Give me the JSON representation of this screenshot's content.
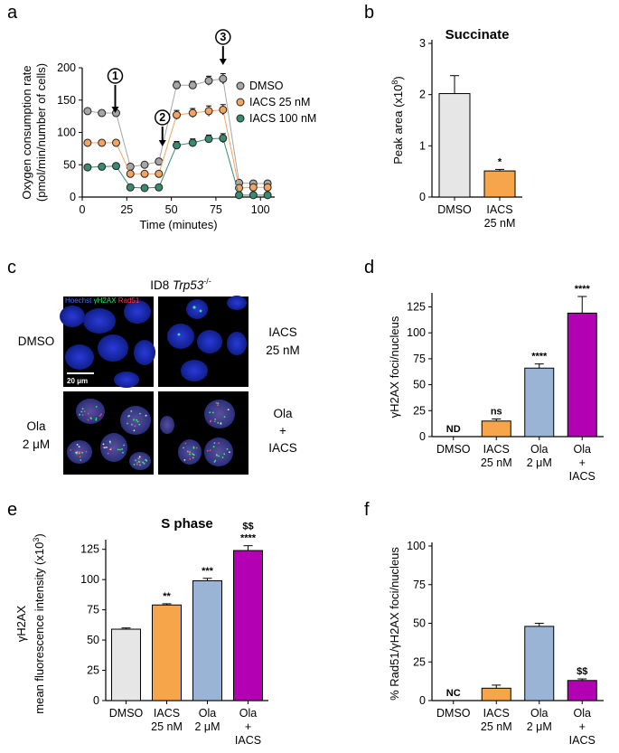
{
  "panels": [
    "a",
    "b",
    "c",
    "d",
    "e",
    "f"
  ],
  "chart_data": [
    {
      "panel": "a",
      "type": "line",
      "xlabel": "Time (minutes)",
      "ylabel_lines": [
        "Oxygen consumption rate",
        "(pmol/min/number of cells)"
      ],
      "xlim": [
        0,
        108
      ],
      "ylim": [
        0,
        200
      ],
      "xticks": [
        0,
        25,
        50,
        75,
        100
      ],
      "yticks": [
        0,
        50,
        100,
        150,
        200
      ],
      "legend_position": "right",
      "injections": [
        {
          "label": "1",
          "x": 18.5
        },
        {
          "label": "2",
          "x": 45
        },
        {
          "label": "3",
          "x": 79
        }
      ],
      "series": [
        {
          "name": "DMSO",
          "color": "#a6a6a6",
          "x": [
            3,
            11,
            19,
            27,
            35,
            43,
            53,
            62,
            71,
            79,
            88,
            96,
            104
          ],
          "y": [
            133,
            130,
            130,
            47,
            50,
            55,
            173,
            173,
            180,
            183,
            22,
            21,
            21
          ],
          "err": [
            4,
            4,
            3,
            4,
            4,
            4,
            6,
            6,
            7,
            8,
            3,
            3,
            3
          ]
        },
        {
          "name": "IACS 25 nM",
          "color": "#f4a460",
          "x": [
            3,
            11,
            19,
            27,
            35,
            43,
            53,
            62,
            71,
            79,
            88,
            96,
            104
          ],
          "y": [
            84,
            84,
            84,
            36,
            36,
            36,
            127,
            130,
            133,
            135,
            14,
            15,
            15
          ],
          "err": [
            3,
            3,
            3,
            3,
            3,
            3,
            7,
            7,
            8,
            8,
            3,
            3,
            3
          ]
        },
        {
          "name": "IACS 100 nM",
          "color": "#3a8a6e",
          "x": [
            3,
            11,
            19,
            27,
            35,
            43,
            53,
            62,
            71,
            79,
            88,
            96,
            104
          ],
          "y": [
            46,
            47,
            48,
            15,
            14,
            15,
            80,
            84,
            90,
            91,
            3,
            3,
            3
          ],
          "err": [
            4,
            4,
            4,
            4,
            4,
            4,
            6,
            6,
            6,
            7,
            2,
            2,
            2
          ]
        }
      ]
    },
    {
      "panel": "b",
      "type": "bar",
      "title": "Succinate",
      "ylabel": "Peak area (x10",
      "ylabel_sup": "8",
      "ylabel_end": ")",
      "ylim": [
        0,
        3
      ],
      "yticks": [
        0,
        1,
        2,
        3
      ],
      "categories": [
        [
          "DMSO"
        ],
        [
          "IACS",
          "25 nM"
        ]
      ],
      "values": [
        2.02,
        0.51
      ],
      "err": [
        0.35,
        0.03
      ],
      "colors": [
        "#e6e6e6",
        "#f7a54a"
      ],
      "significance": [
        "",
        "*"
      ]
    },
    {
      "panel": "d",
      "type": "bar",
      "ylabel": "γH2AX foci/nucleus",
      "ylim": [
        0,
        135
      ],
      "yticks": [
        0,
        25,
        50,
        75,
        100,
        125
      ],
      "categories": [
        [
          "DMSO"
        ],
        [
          "IACS",
          "25 nM"
        ],
        [
          "Ola",
          "2 μM"
        ],
        [
          "Ola",
          "+",
          "IACS"
        ]
      ],
      "values": [
        0,
        15,
        66,
        119
      ],
      "err": [
        0,
        2,
        4,
        16
      ],
      "colors": [
        "#e6e6e6",
        "#f7a54a",
        "#9ab4d6",
        "#b300b3"
      ],
      "significance": [
        "ND",
        "ns",
        "****",
        "****"
      ]
    },
    {
      "panel": "e",
      "type": "bar",
      "title": "S phase",
      "ylabel_lines": [
        "γH2AX",
        "mean fluorescence intensity (x10",
        "3",
        ")"
      ],
      "ylim": [
        0,
        130
      ],
      "yticks": [
        0,
        25,
        50,
        75,
        100,
        125
      ],
      "categories": [
        [
          "DMSO"
        ],
        [
          "IACS",
          "25 nM"
        ],
        [
          "Ola",
          "2 μM"
        ],
        [
          "Ola",
          "+",
          "IACS"
        ]
      ],
      "values": [
        59,
        79,
        99,
        124
      ],
      "err": [
        1,
        1,
        2,
        4
      ],
      "colors": [
        "#e6e6e6",
        "#f7a54a",
        "#9ab4d6",
        "#b300b3"
      ],
      "significance": [
        "",
        "**",
        "***",
        "****"
      ],
      "significance2": [
        "",
        "",
        "",
        "$$"
      ]
    },
    {
      "panel": "f",
      "type": "bar",
      "ylabel": "% Rad51/γH2AX foci/nucleus",
      "ylim": [
        0,
        100
      ],
      "yticks": [
        0,
        25,
        50,
        75,
        100
      ],
      "categories": [
        [
          "DMSO"
        ],
        [
          "IACS",
          "25 nM"
        ],
        [
          "Ola",
          "2 μM"
        ],
        [
          "Ola",
          "+",
          "IACS"
        ]
      ],
      "values": [
        0,
        8,
        48,
        13
      ],
      "err": [
        0,
        2,
        2,
        1
      ],
      "colors": [
        "#e6e6e6",
        "#f7a54a",
        "#9ab4d6",
        "#b300b3"
      ],
      "significance": [
        "NC",
        "",
        "",
        "$$"
      ]
    }
  ],
  "microscopy": {
    "panel": "c",
    "title_prefix": "ID8 ",
    "title_italic": "Trp53",
    "title_sup": "-/-",
    "stain_labels": [
      {
        "text": "Hoechst",
        "color": "#4a6bff"
      },
      {
        "text": "γH2AX",
        "color": "#2ee06a"
      },
      {
        "text": "Rad51",
        "color": "#ff3a3a"
      }
    ],
    "scale_bar": "20 μm",
    "row_labels_left": [
      [
        "DMSO"
      ],
      [
        "Ola",
        "2 μM"
      ]
    ],
    "row_labels_right": [
      [
        "IACS",
        "25 nM"
      ],
      [
        "Ola",
        "+",
        "IACS"
      ]
    ]
  }
}
